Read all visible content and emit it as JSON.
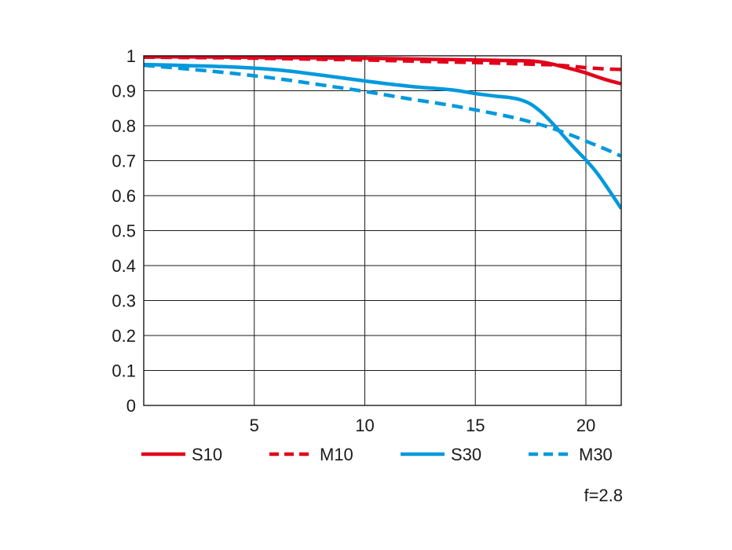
{
  "chart_data": {
    "type": "line",
    "title": "",
    "xlabel": "",
    "ylabel": "",
    "xlim": [
      0,
      21.6
    ],
    "ylim": [
      0,
      1
    ],
    "x_ticks": [
      5,
      10,
      15,
      20
    ],
    "x_tick_labels": [
      "5",
      "10",
      "15",
      "20"
    ],
    "y_ticks": [
      0,
      0.1,
      0.2,
      0.3,
      0.4,
      0.5,
      0.6,
      0.7,
      0.8,
      0.9,
      1
    ],
    "y_tick_labels": [
      "0",
      "0.1",
      "0.2",
      "0.3",
      "0.4",
      "0.5",
      "0.6",
      "0.7",
      "0.8",
      "0.9",
      "1"
    ],
    "grid": true,
    "legend_position": "bottom",
    "annotation": "f=2.8",
    "series": [
      {
        "name": "S10",
        "color": "#e2001a",
        "dash": "solid",
        "x": [
          0,
          2,
          4,
          6,
          8,
          10,
          12,
          14,
          16,
          17,
          17.5,
          18,
          18.5,
          19,
          19.5,
          20,
          20.5,
          21,
          21.6
        ],
        "y": [
          0.997,
          0.997,
          0.996,
          0.995,
          0.994,
          0.993,
          0.991,
          0.989,
          0.987,
          0.986,
          0.985,
          0.982,
          0.976,
          0.968,
          0.96,
          0.951,
          0.94,
          0.93,
          0.92
        ]
      },
      {
        "name": "M10",
        "color": "#e2001a",
        "dash": "dashed",
        "x": [
          0,
          2,
          4,
          6,
          8,
          10,
          12,
          14,
          16,
          17,
          18,
          18.5,
          19,
          19.5,
          20,
          20.5,
          21,
          21.6
        ],
        "y": [
          0.996,
          0.995,
          0.994,
          0.992,
          0.99,
          0.988,
          0.985,
          0.982,
          0.979,
          0.977,
          0.975,
          0.974,
          0.972,
          0.969,
          0.966,
          0.964,
          0.962,
          0.961
        ]
      },
      {
        "name": "S30",
        "color": "#0099dd",
        "dash": "solid",
        "x": [
          0,
          2,
          4,
          6,
          8,
          10,
          12,
          14,
          15,
          16,
          16.5,
          17,
          17.5,
          18,
          18.5,
          19,
          19.5,
          20,
          20.5,
          21,
          21.6
        ],
        "y": [
          0.975,
          0.972,
          0.968,
          0.96,
          0.945,
          0.928,
          0.913,
          0.902,
          0.892,
          0.884,
          0.881,
          0.875,
          0.862,
          0.838,
          0.806,
          0.77,
          0.735,
          0.702,
          0.665,
          0.62,
          0.563
        ]
      },
      {
        "name": "M30",
        "color": "#0099dd",
        "dash": "dashed",
        "x": [
          0,
          2,
          4,
          6,
          8,
          10,
          12,
          14,
          16,
          17,
          18,
          18.5,
          19,
          19.5,
          20,
          20.5,
          21,
          21.6
        ],
        "y": [
          0.973,
          0.962,
          0.95,
          0.935,
          0.917,
          0.898,
          0.877,
          0.857,
          0.833,
          0.819,
          0.802,
          0.792,
          0.781,
          0.769,
          0.756,
          0.743,
          0.73,
          0.713
        ]
      }
    ]
  }
}
